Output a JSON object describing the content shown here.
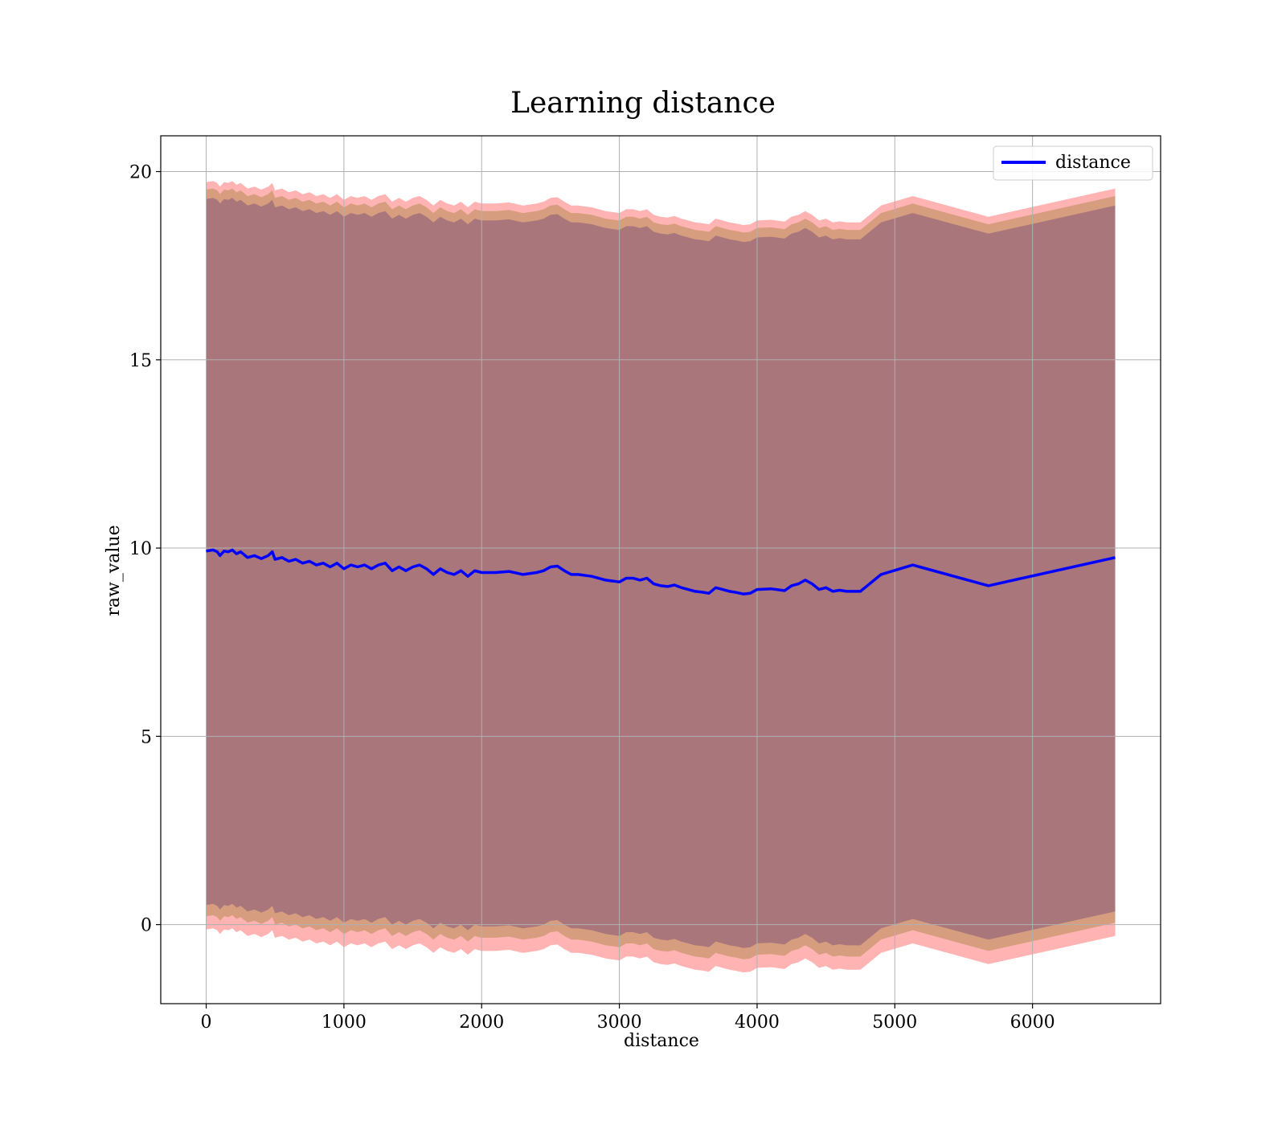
{
  "chart_data": {
    "type": "line",
    "title": "Learning distance",
    "xlabel": "distance",
    "ylabel": "raw_value",
    "xlim": [
      -330,
      6930
    ],
    "ylim": [
      -2.1,
      20.95
    ],
    "xticks": [
      0,
      1000,
      2000,
      3000,
      4000,
      5000,
      6000
    ],
    "yticks": [
      0,
      5,
      10,
      15,
      20
    ],
    "grid": true,
    "legend": {
      "position": "top-right",
      "entries": [
        "distance"
      ]
    },
    "colors": {
      "line": "#0000ff",
      "band_outer": "#ff8080",
      "band_middle": "#c8966e",
      "band_inner": "#a0707a"
    },
    "series": [
      {
        "name": "distance",
        "x": [
          0,
          50,
          80,
          100,
          130,
          160,
          190,
          220,
          250,
          300,
          350,
          400,
          450,
          480,
          500,
          550,
          600,
          650,
          700,
          750,
          800,
          850,
          900,
          950,
          1000,
          1050,
          1100,
          1150,
          1200,
          1250,
          1300,
          1350,
          1400,
          1450,
          1500,
          1550,
          1600,
          1650,
          1700,
          1750,
          1800,
          1850,
          1900,
          1950,
          2000,
          2100,
          2200,
          2300,
          2400,
          2450,
          2500,
          2550,
          2600,
          2650,
          2700,
          2800,
          2900,
          3000,
          3050,
          3100,
          3150,
          3200,
          3250,
          3300,
          3350,
          3400,
          3450,
          3500,
          3550,
          3600,
          3650,
          3700,
          3750,
          3800,
          3850,
          3900,
          3950,
          4000,
          4100,
          4200,
          4250,
          4300,
          4350,
          4400,
          4450,
          4500,
          4550,
          4600,
          4650,
          4750,
          4900,
          5130,
          5680,
          6600
        ],
        "values": [
          9.92,
          9.95,
          9.9,
          9.8,
          9.92,
          9.9,
          9.95,
          9.85,
          9.9,
          9.75,
          9.8,
          9.72,
          9.8,
          9.9,
          9.7,
          9.75,
          9.65,
          9.7,
          9.6,
          9.65,
          9.55,
          9.6,
          9.5,
          9.6,
          9.45,
          9.55,
          9.5,
          9.55,
          9.45,
          9.55,
          9.6,
          9.4,
          9.5,
          9.4,
          9.5,
          9.55,
          9.45,
          9.3,
          9.45,
          9.35,
          9.3,
          9.4,
          9.25,
          9.4,
          9.35,
          9.35,
          9.38,
          9.3,
          9.35,
          9.4,
          9.5,
          9.52,
          9.4,
          9.3,
          9.3,
          9.25,
          9.15,
          9.1,
          9.2,
          9.2,
          9.15,
          9.2,
          9.05,
          9.0,
          8.98,
          9.02,
          8.95,
          8.9,
          8.85,
          8.83,
          8.8,
          8.95,
          8.9,
          8.85,
          8.82,
          8.78,
          8.8,
          8.9,
          8.92,
          8.87,
          9.0,
          9.05,
          9.15,
          9.05,
          8.9,
          8.95,
          8.85,
          8.88,
          8.85,
          8.85,
          9.3,
          9.55,
          9.0,
          9.75
        ]
      }
    ],
    "bands": [
      {
        "label": "",
        "lower_offset": -10.05,
        "upper_offset": 9.8,
        "color": "band_outer"
      },
      {
        "label": "",
        "lower_offset": -9.7,
        "upper_offset": 9.6,
        "color": "band_middle"
      },
      {
        "label": "",
        "lower_offset": -9.4,
        "upper_offset": 9.35,
        "color": "band_inner"
      }
    ]
  }
}
